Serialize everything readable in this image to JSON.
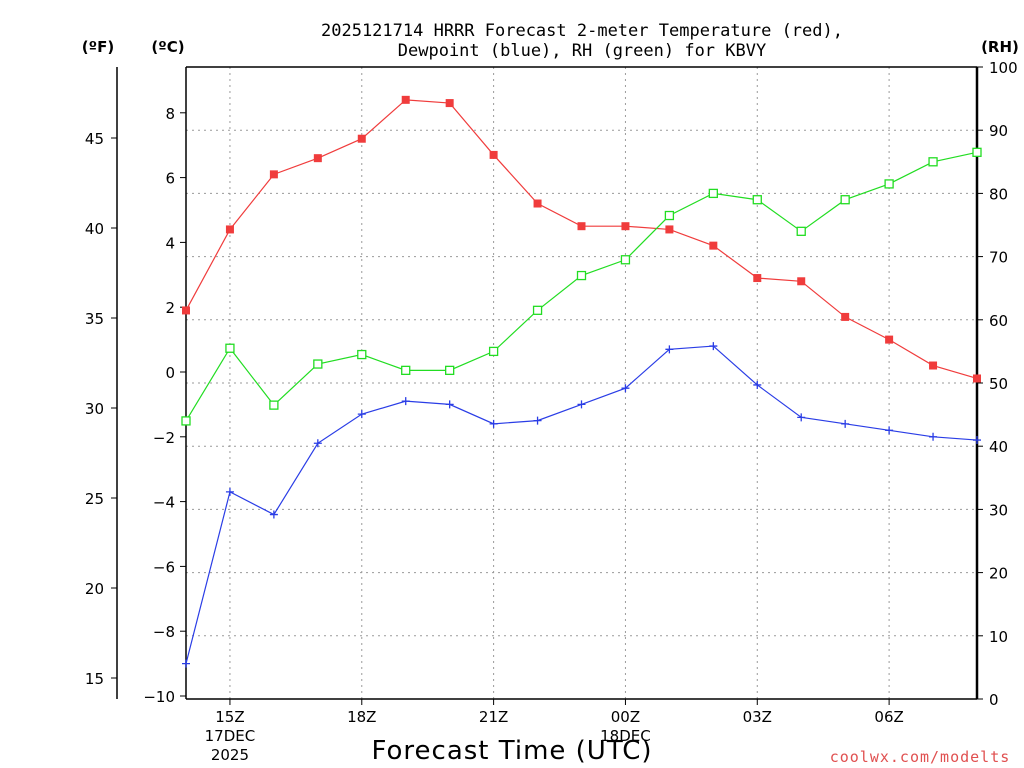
{
  "chart_data": {
    "type": "line",
    "title_line1": "2025121714 HRRR Forecast 2-meter Temperature (red),",
    "title_line2": "Dewpoint (blue), RH (green) for KBVY",
    "xlabel": "Forecast Time (UTC)",
    "credit": "coolwx.com/modelts",
    "units": {
      "fahrenheit": "(ºF)",
      "celsius": "(ºC)",
      "rh": "(RH)"
    },
    "x_hours": [
      14,
      15,
      16,
      17,
      18,
      19,
      20,
      21,
      22,
      23,
      24,
      25,
      26,
      27,
      28,
      29,
      30,
      31,
      32
    ],
    "xlim": [
      14,
      32
    ],
    "x_ticks": [
      {
        "hour": 15,
        "lines": [
          "15Z",
          "17DEC",
          "2025"
        ]
      },
      {
        "hour": 18,
        "lines": [
          "18Z"
        ]
      },
      {
        "hour": 21,
        "lines": [
          "21Z"
        ]
      },
      {
        "hour": 24,
        "lines": [
          "00Z",
          "18DEC"
        ]
      },
      {
        "hour": 27,
        "lines": [
          "03Z"
        ]
      },
      {
        "hour": 30,
        "lines": [
          "06Z"
        ]
      }
    ],
    "celsius_axis": {
      "ylim": [
        -10,
        9.5
      ],
      "ticks": [
        "8",
        "6",
        "4",
        "2",
        "0",
        "−2",
        "−4",
        "−6",
        "−8",
        "−10"
      ],
      "tick_values": [
        8,
        6,
        4,
        2,
        0,
        -2,
        -4,
        -6,
        -8,
        -10
      ]
    },
    "fahrenheit_axis": {
      "ticks": [
        "45",
        "40",
        "35",
        "30",
        "25",
        "20",
        "15"
      ],
      "tick_values": [
        45,
        40,
        35,
        30,
        25,
        20,
        15
      ]
    },
    "rh_axis": {
      "ylim": [
        0,
        100
      ],
      "ticks": [
        "100",
        "90",
        "80",
        "70",
        "60",
        "50",
        "40",
        "30",
        "20",
        "10",
        "0"
      ],
      "tick_values": [
        100,
        90,
        80,
        70,
        60,
        50,
        40,
        30,
        20,
        10,
        0
      ]
    },
    "series": [
      {
        "name": "Temperature",
        "axis": "celsius",
        "color": "#f03c3c",
        "marker": "filled-square",
        "values": [
          1.9,
          4.4,
          6.1,
          6.6,
          7.2,
          8.4,
          8.3,
          6.7,
          5.2,
          4.5,
          4.5,
          4.4,
          3.9,
          2.9,
          2.8,
          1.7,
          1.0,
          0.2,
          -0.2
        ]
      },
      {
        "name": "Dewpoint",
        "axis": "celsius",
        "color": "#2a3de6",
        "marker": "plus",
        "values": [
          -9.0,
          -3.7,
          -4.4,
          -2.2,
          -1.3,
          -0.9,
          -1.0,
          -1.6,
          -1.5,
          -1.0,
          -0.5,
          0.7,
          0.8,
          -0.4,
          -1.4,
          -1.6,
          -1.8,
          -2.0,
          -2.1
        ]
      },
      {
        "name": "RH",
        "axis": "rh",
        "color": "#22dd22",
        "marker": "open-square",
        "values": [
          44,
          55.5,
          46.5,
          53,
          54.5,
          52,
          52,
          55,
          61.5,
          67,
          69.5,
          76.5,
          80,
          79,
          74,
          79,
          81.5,
          85,
          86.5
        ]
      }
    ]
  }
}
